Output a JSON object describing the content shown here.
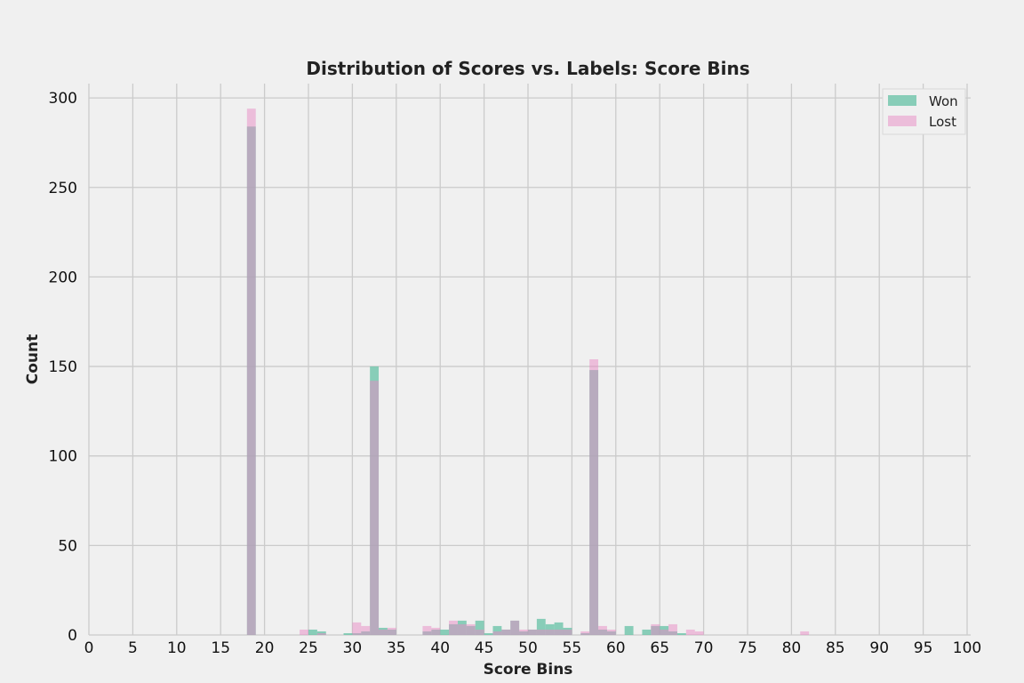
{
  "chart_data": {
    "type": "bar",
    "title": "Distribution of Scores vs. Labels: Score Bins",
    "xlabel": "Score Bins",
    "ylabel": "Count",
    "xlim": [
      0,
      100
    ],
    "ylim": [
      0,
      308
    ],
    "xticks": [
      0,
      5,
      10,
      15,
      20,
      25,
      30,
      35,
      40,
      45,
      50,
      55,
      60,
      65,
      70,
      75,
      80,
      85,
      90,
      95,
      100
    ],
    "yticks": [
      0,
      50,
      100,
      150,
      200,
      250,
      300
    ],
    "grid": true,
    "legend_position": "top-right",
    "bin_width": 1,
    "series": [
      {
        "name": "Won",
        "color": "#66c2a5",
        "opacity": 0.75,
        "bins": [
          {
            "x": 18,
            "value": 284
          },
          {
            "x": 25,
            "value": 3
          },
          {
            "x": 26,
            "value": 2
          },
          {
            "x": 29,
            "value": 1
          },
          {
            "x": 30,
            "value": 1
          },
          {
            "x": 31,
            "value": 2
          },
          {
            "x": 32,
            "value": 150
          },
          {
            "x": 33,
            "value": 4
          },
          {
            "x": 34,
            "value": 3
          },
          {
            "x": 38,
            "value": 2
          },
          {
            "x": 39,
            "value": 3
          },
          {
            "x": 40,
            "value": 3
          },
          {
            "x": 41,
            "value": 6
          },
          {
            "x": 42,
            "value": 8
          },
          {
            "x": 43,
            "value": 5
          },
          {
            "x": 44,
            "value": 8
          },
          {
            "x": 45,
            "value": 1
          },
          {
            "x": 46,
            "value": 5
          },
          {
            "x": 47,
            "value": 3
          },
          {
            "x": 48,
            "value": 8
          },
          {
            "x": 49,
            "value": 2
          },
          {
            "x": 50,
            "value": 3
          },
          {
            "x": 51,
            "value": 9
          },
          {
            "x": 52,
            "value": 6
          },
          {
            "x": 53,
            "value": 7
          },
          {
            "x": 54,
            "value": 4
          },
          {
            "x": 56,
            "value": 1
          },
          {
            "x": 57,
            "value": 148
          },
          {
            "x": 58,
            "value": 3
          },
          {
            "x": 59,
            "value": 2
          },
          {
            "x": 61,
            "value": 5
          },
          {
            "x": 63,
            "value": 3
          },
          {
            "x": 64,
            "value": 5
          },
          {
            "x": 65,
            "value": 5
          },
          {
            "x": 66,
            "value": 2
          },
          {
            "x": 67,
            "value": 1
          }
        ]
      },
      {
        "name": "Lost",
        "color": "#e78ac3",
        "opacity": 0.5,
        "bins": [
          {
            "x": 18,
            "value": 294
          },
          {
            "x": 24,
            "value": 3
          },
          {
            "x": 26,
            "value": 1
          },
          {
            "x": 30,
            "value": 7
          },
          {
            "x": 31,
            "value": 5
          },
          {
            "x": 32,
            "value": 142
          },
          {
            "x": 33,
            "value": 3
          },
          {
            "x": 34,
            "value": 4
          },
          {
            "x": 38,
            "value": 5
          },
          {
            "x": 39,
            "value": 4
          },
          {
            "x": 41,
            "value": 8
          },
          {
            "x": 42,
            "value": 6
          },
          {
            "x": 43,
            "value": 6
          },
          {
            "x": 44,
            "value": 3
          },
          {
            "x": 46,
            "value": 2
          },
          {
            "x": 47,
            "value": 3
          },
          {
            "x": 48,
            "value": 8
          },
          {
            "x": 49,
            "value": 3
          },
          {
            "x": 50,
            "value": 3
          },
          {
            "x": 51,
            "value": 3
          },
          {
            "x": 52,
            "value": 3
          },
          {
            "x": 53,
            "value": 3
          },
          {
            "x": 54,
            "value": 3
          },
          {
            "x": 56,
            "value": 2
          },
          {
            "x": 57,
            "value": 154
          },
          {
            "x": 58,
            "value": 5
          },
          {
            "x": 59,
            "value": 3
          },
          {
            "x": 64,
            "value": 6
          },
          {
            "x": 65,
            "value": 3
          },
          {
            "x": 66,
            "value": 6
          },
          {
            "x": 68,
            "value": 3
          },
          {
            "x": 69,
            "value": 2
          },
          {
            "x": 81,
            "value": 2
          }
        ]
      }
    ]
  }
}
